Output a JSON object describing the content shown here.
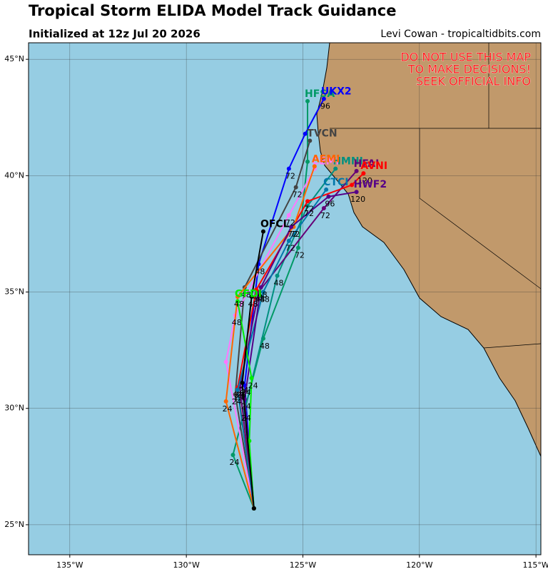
{
  "header": {
    "title": "Tropical Storm ELIDA Model Track Guidance",
    "subtitle": "Initialized at 12z Jul 20 2026",
    "credit": "Levi Cowan - tropicaltidbits.com"
  },
  "warning": [
    "DO NOT USE THIS MAP",
    "TO MAKE DECISIONS!",
    "SEEK OFFICIAL INFO"
  ],
  "map": {
    "xlim": [
      -136.77,
      -114.79
    ],
    "ylim": [
      23.71,
      45.71
    ],
    "grid": true,
    "xticks": [
      {
        "value": -135,
        "label": "135°W"
      },
      {
        "value": -130,
        "label": "130°W"
      },
      {
        "value": -125,
        "label": "125°W"
      },
      {
        "value": -120,
        "label": "120°W"
      },
      {
        "value": -115,
        "label": "115°W"
      }
    ],
    "yticks": [
      {
        "value": 25,
        "label": "25°N"
      },
      {
        "value": 30,
        "label": "30°N"
      },
      {
        "value": 35,
        "label": "35°N"
      },
      {
        "value": 40,
        "label": "40°N"
      },
      {
        "value": 45,
        "label": "45°N"
      }
    ],
    "tracks": [
      {
        "name": "HFSA",
        "color": "#009966",
        "lon": [
          -127.1,
          -128.0,
          -126.7,
          -125.2,
          -124.8,
          -124.8
        ],
        "lat": [
          25.7,
          28.0,
          33.0,
          36.9,
          40.6,
          43.2
        ],
        "hour_labels": [
          null,
          24,
          48,
          72,
          null,
          null
        ]
      },
      {
        "name": "UKX2",
        "color": "#0000ff",
        "lon": [
          -127.1,
          -127.5,
          -126.9,
          -125.6,
          -124.9,
          -124.1
        ],
        "lat": [
          25.7,
          31.0,
          36.2,
          40.3,
          41.8,
          43.3
        ],
        "hour_labels": [
          null,
          24,
          48,
          72,
          null,
          96
        ]
      },
      {
        "name": "TVCN",
        "color": "#444444",
        "lon": [
          -127.1,
          -127.9,
          -127.5,
          -125.3,
          -124.7,
          null
        ],
        "lat": [
          25.7,
          30.6,
          35.2,
          39.5,
          41.5,
          null
        ],
        "hour_labels": [
          null,
          24,
          48,
          72,
          null,
          null
        ]
      },
      {
        "name": "CEMI",
        "color": "#ff77ff",
        "lon": [
          -127.1,
          -128.3,
          -127.9,
          -125.6,
          -124.5,
          null
        ],
        "lat": [
          25.7,
          32.0,
          34.0,
          38.3,
          40.3,
          null
        ],
        "hour_labels": [
          null,
          null,
          48,
          72,
          null,
          null
        ]
      },
      {
        "name": "HMNI",
        "color": "#009080",
        "lon": [
          -127.1,
          -127.5,
          -126.1,
          -124.8,
          -123.6,
          null
        ],
        "lat": [
          25.7,
          29.9,
          35.7,
          38.7,
          40.3,
          null
        ],
        "hour_labels": [
          null,
          24,
          48,
          72,
          null,
          null
        ]
      },
      {
        "name": "HFAI",
        "color": "#660077",
        "lon": [
          -127.1,
          -127.7,
          -126.9,
          -124.1,
          -122.7,
          null
        ],
        "lat": [
          25.7,
          30.9,
          35.0,
          38.6,
          40.2,
          null
        ],
        "hour_labels": [
          null,
          24,
          48,
          72,
          null,
          null
        ]
      },
      {
        "name": "AVNI",
        "color": "#ff0000",
        "lon": [
          -127.1,
          -127.8,
          -127.0,
          -124.8,
          -122.9,
          -122.4
        ],
        "lat": [
          25.7,
          30.9,
          35.1,
          38.9,
          39.6,
          40.1
        ],
        "hour_labels": [
          null,
          24,
          48,
          72,
          null,
          120
        ]
      },
      {
        "name": "AEMI",
        "color": "#ff6600",
        "lon": [
          -127.1,
          -128.3,
          -127.8,
          -125.4,
          -124.5,
          null
        ],
        "lat": [
          25.7,
          30.3,
          34.8,
          37.8,
          40.4,
          null
        ],
        "hour_labels": [
          null,
          24,
          48,
          72,
          null,
          null
        ]
      },
      {
        "name": "CTCI",
        "color": "#0077aa",
        "lon": [
          -127.1,
          -127.8,
          -126.7,
          -125.6,
          -124.0,
          null
        ],
        "lat": [
          25.7,
          30.8,
          35.0,
          37.2,
          39.4,
          null
        ],
        "hour_labels": [
          null,
          24,
          48,
          72,
          null,
          null
        ]
      },
      {
        "name": "HWF2",
        "color": "#550088",
        "lon": [
          -127.1,
          -127.5,
          -126.8,
          -125.5,
          -123.9,
          -122.7
        ],
        "lat": [
          25.7,
          30.4,
          35.2,
          37.8,
          39.1,
          39.3
        ],
        "hour_labels": [
          null,
          24,
          48,
          72,
          96,
          120
        ]
      },
      {
        "name": "GFDI",
        "color": "#00ee00",
        "lon": [
          -127.1,
          -127.3,
          -127.2,
          -127.8,
          null,
          null
        ],
        "lat": [
          25.7,
          28.6,
          31.3,
          34.6,
          null,
          null
        ],
        "hour_labels": [
          null,
          null,
          24,
          null,
          null,
          null
        ]
      },
      {
        "name": "OFCL",
        "color": "#000000",
        "lon": [
          -127.1,
          -127.6,
          -127.2,
          -126.7,
          null,
          null
        ],
        "lat": [
          25.7,
          31.1,
          34.8,
          37.6,
          null,
          null
        ],
        "hour_labels": [
          null,
          24,
          48,
          null,
          null,
          null
        ]
      }
    ]
  }
}
